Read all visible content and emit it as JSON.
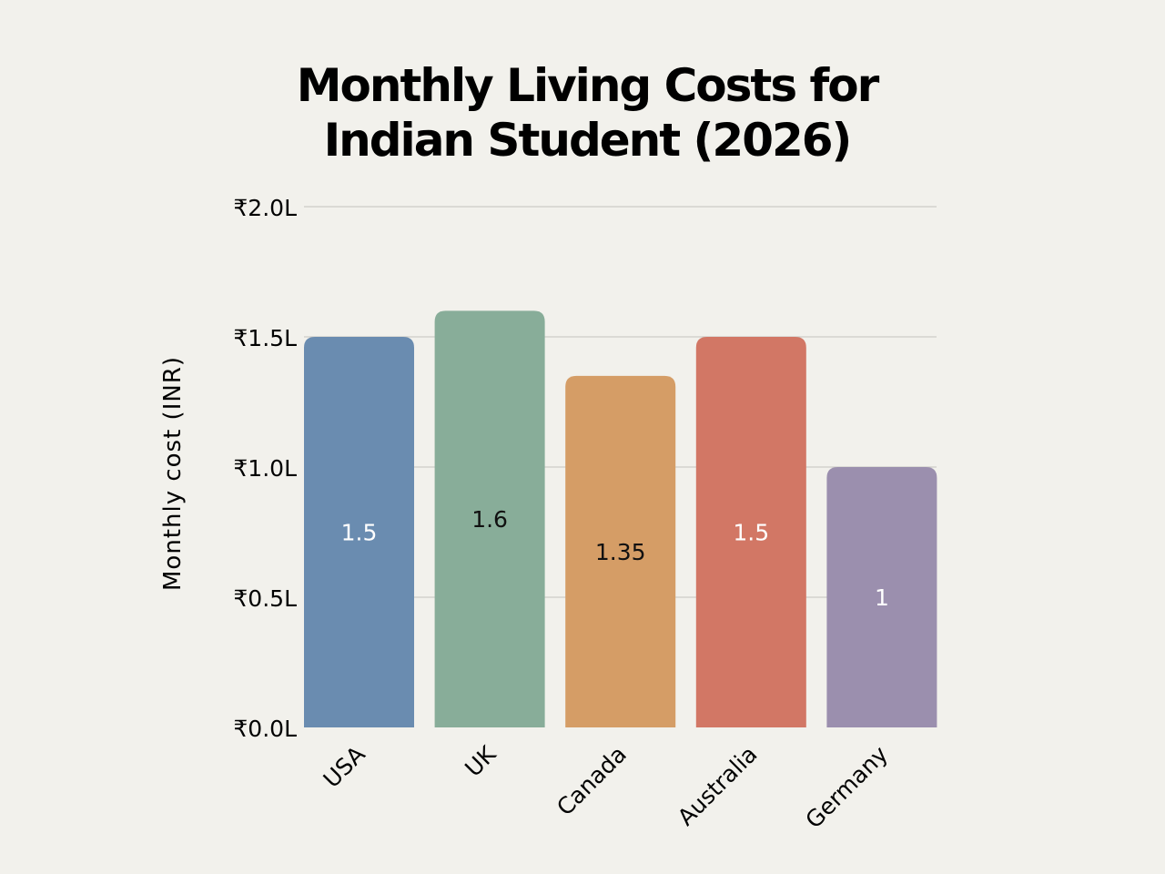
{
  "chart_data": {
    "type": "bar",
    "title_lines": [
      "Monthly Living  Costs for",
      "Indian Student (2026)"
    ],
    "xlabel": "",
    "ylabel": "Monthly cost (INR)",
    "categories": [
      "USA",
      "UK",
      "Canada",
      "Australia",
      "Germany"
    ],
    "values": [
      1.5,
      1.6,
      1.35,
      1.5,
      1
    ],
    "data_labels": [
      "1.5",
      "1.6",
      "1.35",
      "1.5",
      "1"
    ],
    "colors": [
      "#6a8cb0",
      "#88ad99",
      "#d59d66",
      "#d27765",
      "#9b8fae"
    ],
    "label_colors": [
      "#ffffff",
      "#111111",
      "#111111",
      "#ffffff",
      "#ffffff"
    ],
    "ylim": [
      0,
      2.0
    ],
    "yticks": [
      0,
      0.5,
      1.0,
      1.5,
      2.0
    ],
    "ytick_labels": [
      "₹0.0L",
      "₹0.5L",
      "₹1.0L",
      "₹1.5L",
      "₹2.0L"
    ],
    "grid": true,
    "legend": "none"
  }
}
